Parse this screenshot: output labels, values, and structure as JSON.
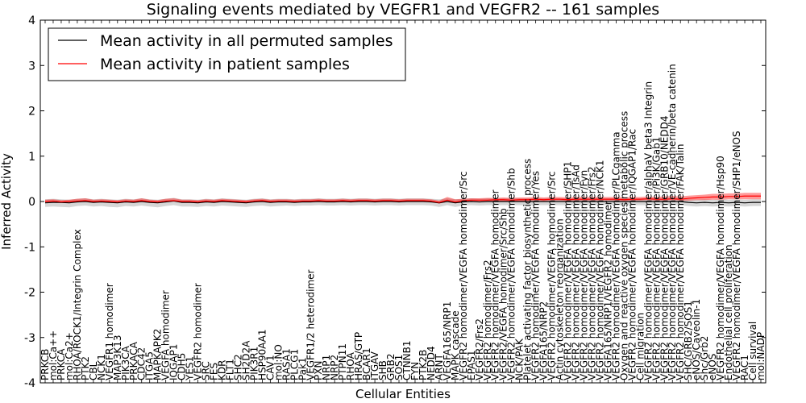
{
  "chart_data": {
    "type": "line",
    "title": "Signaling events mediated by VEGFR1 and VEGFR2 -- 161 samples",
    "xlabel": "Cellular Entities",
    "ylabel": "Inferred Activity",
    "ylim": [
      -4,
      4
    ],
    "yticks": [
      -4,
      -3,
      -2,
      -1,
      0,
      1,
      2,
      3,
      4
    ],
    "legend_position": "top-left",
    "categories": [
      "PRKCB",
      "mol:Ca++",
      "PRKCA",
      "mol:Ca2+",
      "RHOA/ROCK1/Integrin Complex",
      "PTK2",
      "CBL",
      "NCK1",
      "VEGFR1 homodimer",
      "MAP3K13",
      "PIK3CA",
      "PRKACA",
      "CDC42",
      "ITGA5",
      "MAPKAPK2",
      "VEGFA homodimer",
      "IQGAP1",
      "CDH5",
      "YES1",
      "VEGFR2 homodimer",
      "SRC",
      "FES",
      "KDR",
      "FLT1",
      "SHC2",
      "SH2D2A",
      "PIK3R1",
      "HSP90AA1",
      "CAV1",
      "mol:NO",
      "RASA1",
      "PLCG1",
      "Pak1",
      "VEGFR1/2 heterodimer",
      "PXN",
      "NRP1",
      "NRP2",
      "PTPN11",
      "RHOA",
      "HRAS/GTP",
      "BCAR1",
      "ITGAV",
      "SHB",
      "GRB2",
      "SOS1",
      "CTNNB1",
      "FYN",
      "PTK2B",
      "NEDD4",
      "ARNT",
      "VEGFA165/NRP1",
      "MAPK cascade",
      "VEGFR2 homodimer/VEGFA homodimer/Src",
      "EPAS1",
      "VEGFR2/Frs2",
      "VEGFR2 homodimer/Frs2",
      "VEGFR2 homodimer/VEGFA homodimer",
      "VEGFR2/VEGFA homodimer/Src/Shb",
      "VEGFR2 homodimer/VEGFA homodimer/Shb",
      "NCK/PAK",
      "Platelet activating factor biosynthetic process",
      "VEGFR2 homodimer/VEGFA homodimer/Yes",
      "VEGFA165/NRP2",
      "VEGFR2 homodimer/VEGFA homodimer/Src",
      "Actin cytoskeleton reorganization",
      "VEGFR2 homodimer/VEGFA homodimer/SHP1",
      "VEGFR2 homodimer/VEGFA homodimer/TsAd",
      "VEGFR2 homodimer/VEGFA homodimer/Fyn",
      "VEGFR2 homodimer/VEGFA homodimer/Frs2",
      "VEGFR2 homodimer/VEGFA homodimer/NCK1",
      "VEGFA165/NRP1/VEGFR2 homodimer",
      "VEGFR2 homodimer/VEGFA homodimer/PLCgamma",
      "Oxygen and reactive oxygen species metabolic process",
      "VEGFR2 homodimer/VEGFA homodimer/IQGAP1/Rac",
      "Cell migration",
      "VEGFR2 homodimer/VEGFA homodimer/alphaV beta3 Integrin",
      "VEGFR2 homodimer/VEGFA homodimer/Pi3K/Gab1",
      "VEGFR2 homodimer/VEGFA homodimer/GRB10/NEDD4",
      "VEGFR2 homodimer/VEGFA homodimer/VE-cadherin/beta catenin",
      "VEGFR2 homodimer/VEGFA homodimer/FAK/Talin",
      "SHC/GRB2/SOS1",
      "eNOS/Caveolin-1",
      "Shc/Grb2",
      "eNOS",
      "VEGFR2 homodimer/VEGFA homodimer/Hsp90",
      "Endothelial cell proliferation",
      "VEGFR2 homodimer/VEGFA homodimer/SHP1/eNOS",
      "RAC1",
      "Cell survival",
      "mol:NADP"
    ],
    "series": [
      {
        "name": "Mean activity in all permuted samples",
        "color": "#000000",
        "values": [
          -0.03,
          -0.02,
          -0.02,
          -0.03,
          -0.01,
          0.0,
          -0.02,
          -0.01,
          -0.02,
          -0.03,
          -0.01,
          -0.02,
          0.0,
          -0.02,
          -0.03,
          -0.01,
          0.01,
          -0.02,
          -0.02,
          -0.03,
          -0.01,
          -0.02,
          0.0,
          -0.01,
          -0.02,
          -0.03,
          -0.01,
          0.0,
          -0.02,
          -0.01,
          -0.01,
          -0.02,
          -0.01,
          -0.01,
          0.0,
          -0.01,
          -0.01,
          0.0,
          -0.01,
          0.0,
          0.0,
          -0.01,
          0.0,
          0.0,
          -0.01,
          0.0,
          0.0,
          0.0,
          -0.01,
          -0.03,
          0.0,
          -0.03,
          -0.01,
          0.0,
          -0.01,
          0.0,
          0.0,
          0.0,
          0.0,
          0.0,
          0.0,
          0.0,
          0.0,
          0.0,
          0.0,
          0.0,
          0.0,
          0.0,
          0.0,
          0.0,
          0.0,
          0.0,
          0.0,
          0.0,
          0.0,
          0.0,
          0.0,
          0.0,
          0.0,
          0.0,
          -0.02,
          -0.03,
          -0.02,
          -0.03,
          -0.02,
          -0.03,
          -0.02,
          -0.03,
          -0.02,
          -0.02
        ]
      },
      {
        "name": "Mean activity in patient samples",
        "color": "#ff0000",
        "values": [
          0.0,
          0.01,
          -0.01,
          0.0,
          0.01,
          0.02,
          0.0,
          0.01,
          0.0,
          -0.01,
          0.01,
          0.0,
          0.02,
          0.0,
          -0.01,
          0.01,
          0.02,
          0.0,
          0.0,
          -0.01,
          0.01,
          0.0,
          0.02,
          0.01,
          0.0,
          -0.01,
          0.01,
          0.02,
          0.0,
          0.01,
          0.01,
          0.0,
          0.01,
          0.01,
          0.02,
          0.01,
          0.01,
          0.02,
          0.01,
          0.02,
          0.02,
          0.01,
          0.02,
          0.02,
          0.01,
          0.02,
          0.02,
          0.02,
          0.01,
          -0.02,
          0.03,
          -0.01,
          0.02,
          0.03,
          0.03,
          0.03,
          0.04,
          0.04,
          0.03,
          0.04,
          0.04,
          0.05,
          0.04,
          0.05,
          0.05,
          0.04,
          0.05,
          0.05,
          0.05,
          0.05,
          0.05,
          0.05,
          0.04,
          0.05,
          0.05,
          0.06,
          0.05,
          0.05,
          0.06,
          0.05,
          0.07,
          0.08,
          0.09,
          0.1,
          0.1,
          0.11,
          0.11,
          0.12,
          0.12,
          0.12
        ]
      }
    ],
    "bands": [
      {
        "name": "permuted spread",
        "color": "#c8c8c8",
        "lower": [
          -0.12,
          -0.11,
          -0.12,
          -0.13,
          -0.1,
          -0.09,
          -0.11,
          -0.1,
          -0.12,
          -0.13,
          -0.1,
          -0.11,
          -0.09,
          -0.11,
          -0.13,
          -0.1,
          -0.08,
          -0.11,
          -0.11,
          -0.12,
          -0.1,
          -0.11,
          -0.09,
          -0.1,
          -0.11,
          -0.12,
          -0.1,
          -0.09,
          -0.11,
          -0.1,
          -0.09,
          -0.1,
          -0.09,
          -0.09,
          -0.08,
          -0.09,
          -0.09,
          -0.08,
          -0.09,
          -0.08,
          -0.08,
          -0.09,
          -0.08,
          -0.08,
          -0.09,
          -0.08,
          -0.08,
          -0.08,
          -0.09,
          -0.12,
          -0.08,
          -0.12,
          -0.09,
          -0.08,
          -0.09,
          -0.08,
          -0.08,
          -0.08,
          -0.08,
          -0.08,
          -0.08,
          -0.08,
          -0.08,
          -0.08,
          -0.08,
          -0.08,
          -0.08,
          -0.08,
          -0.08,
          -0.08,
          -0.08,
          -0.08,
          -0.08,
          -0.08,
          -0.08,
          -0.08,
          -0.08,
          -0.08,
          -0.08,
          -0.08,
          -0.1,
          -0.11,
          -0.1,
          -0.11,
          -0.1,
          -0.11,
          -0.1,
          -0.11,
          -0.1,
          -0.1
        ],
        "upper": [
          0.05,
          0.06,
          0.05,
          0.04,
          0.06,
          0.07,
          0.05,
          0.06,
          0.05,
          0.04,
          0.06,
          0.05,
          0.07,
          0.05,
          0.04,
          0.06,
          0.08,
          0.05,
          0.05,
          0.04,
          0.06,
          0.05,
          0.07,
          0.06,
          0.05,
          0.04,
          0.06,
          0.07,
          0.05,
          0.06,
          0.06,
          0.05,
          0.06,
          0.06,
          0.07,
          0.06,
          0.06,
          0.07,
          0.06,
          0.07,
          0.07,
          0.06,
          0.07,
          0.07,
          0.06,
          0.07,
          0.07,
          0.07,
          0.06,
          0.05,
          0.07,
          0.05,
          0.06,
          0.07,
          0.06,
          0.07,
          0.07,
          0.07,
          0.07,
          0.07,
          0.07,
          0.07,
          0.07,
          0.07,
          0.07,
          0.07,
          0.07,
          0.07,
          0.07,
          0.07,
          0.07,
          0.07,
          0.07,
          0.07,
          0.07,
          0.07,
          0.07,
          0.07,
          0.07,
          0.07,
          0.05,
          0.04,
          0.05,
          0.04,
          0.05,
          0.04,
          0.05,
          0.04,
          0.05,
          0.05
        ]
      },
      {
        "name": "patient spread",
        "color": "#ff0000",
        "lower": [
          -0.02,
          -0.01,
          -0.03,
          -0.02,
          -0.01,
          0.0,
          -0.02,
          -0.01,
          -0.02,
          -0.03,
          -0.01,
          -0.02,
          0.0,
          -0.02,
          -0.03,
          -0.01,
          0.0,
          -0.02,
          -0.02,
          -0.03,
          -0.01,
          -0.02,
          0.0,
          -0.01,
          -0.02,
          -0.03,
          -0.01,
          0.0,
          -0.02,
          -0.01,
          -0.01,
          -0.02,
          -0.01,
          -0.01,
          0.0,
          -0.01,
          -0.01,
          0.0,
          -0.01,
          0.0,
          0.0,
          -0.01,
          0.0,
          0.0,
          -0.01,
          0.0,
          0.0,
          0.0,
          -0.01,
          -0.05,
          0.0,
          -0.04,
          0.0,
          0.0,
          0.0,
          0.0,
          0.01,
          0.01,
          0.0,
          0.01,
          0.01,
          0.02,
          0.01,
          0.02,
          0.02,
          0.01,
          0.02,
          0.02,
          0.02,
          0.02,
          0.02,
          0.02,
          0.01,
          0.02,
          0.02,
          0.03,
          0.02,
          0.02,
          0.03,
          0.02,
          0.02,
          0.03,
          0.03,
          0.04,
          0.04,
          0.05,
          0.05,
          0.05,
          0.05,
          0.05
        ],
        "upper": [
          0.04,
          0.05,
          0.03,
          0.04,
          0.06,
          0.07,
          0.04,
          0.05,
          0.04,
          0.03,
          0.05,
          0.04,
          0.07,
          0.04,
          0.03,
          0.06,
          0.07,
          0.04,
          0.04,
          0.03,
          0.05,
          0.04,
          0.06,
          0.05,
          0.04,
          0.03,
          0.05,
          0.06,
          0.04,
          0.05,
          0.05,
          0.04,
          0.05,
          0.05,
          0.06,
          0.05,
          0.05,
          0.06,
          0.05,
          0.06,
          0.06,
          0.05,
          0.06,
          0.06,
          0.05,
          0.06,
          0.06,
          0.06,
          0.05,
          0.02,
          0.1,
          0.05,
          0.06,
          0.07,
          0.07,
          0.08,
          0.08,
          0.09,
          0.08,
          0.09,
          0.09,
          0.1,
          0.09,
          0.1,
          0.1,
          0.09,
          0.1,
          0.1,
          0.1,
          0.1,
          0.1,
          0.1,
          0.09,
          0.1,
          0.1,
          0.11,
          0.1,
          0.11,
          0.12,
          0.11,
          0.13,
          0.14,
          0.15,
          0.17,
          0.17,
          0.18,
          0.18,
          0.19,
          0.19,
          0.19
        ]
      }
    ]
  }
}
